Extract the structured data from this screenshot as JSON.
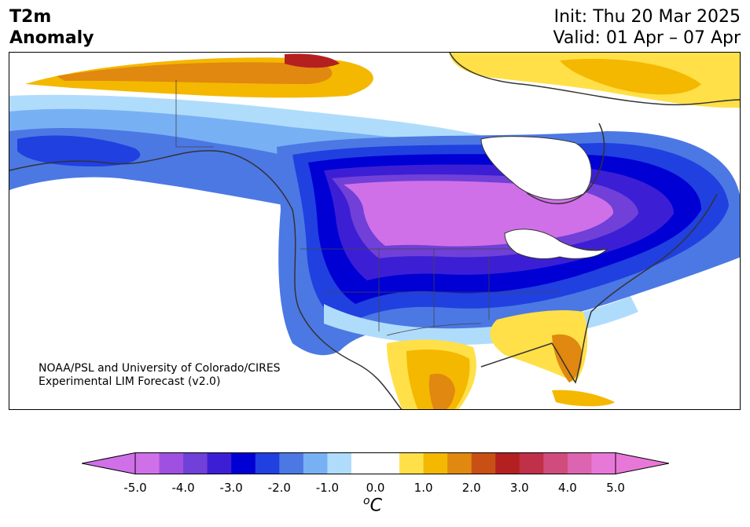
{
  "title": {
    "line1": "T2m",
    "line2": "Anomaly"
  },
  "header": {
    "init": "Init: Thu 20 Mar 2025",
    "valid": "Valid: 01 Apr – 07 Apr"
  },
  "credit": {
    "line1": "NOAA/PSL and University of Colorado/CIRES",
    "line2": "Experimental LIM Forecast (v2.0)"
  },
  "colorbar": {
    "ticks": [
      "-5.0",
      "-4.0",
      "-3.0",
      "-2.0",
      "-1.0",
      "0.0",
      "1.0",
      "2.0",
      "3.0",
      "4.0",
      "5.0"
    ],
    "unit_superscript": "o",
    "unit": "C",
    "colors": [
      "#d070e8",
      "#a050e0",
      "#7040d8",
      "#3c1fd4",
      "#0000d4",
      "#2040e0",
      "#4c78e4",
      "#78b0f4",
      "#b0dcfc",
      "#ffffff",
      "#ffffff",
      "#ffe048",
      "#f4b800",
      "#e08810",
      "#c85014",
      "#b42020",
      "#c03048",
      "#d04c7c",
      "#dc64b0",
      "#e878d8"
    ],
    "under_color": "#d070e8",
    "over_color": "#e878d8"
  }
}
